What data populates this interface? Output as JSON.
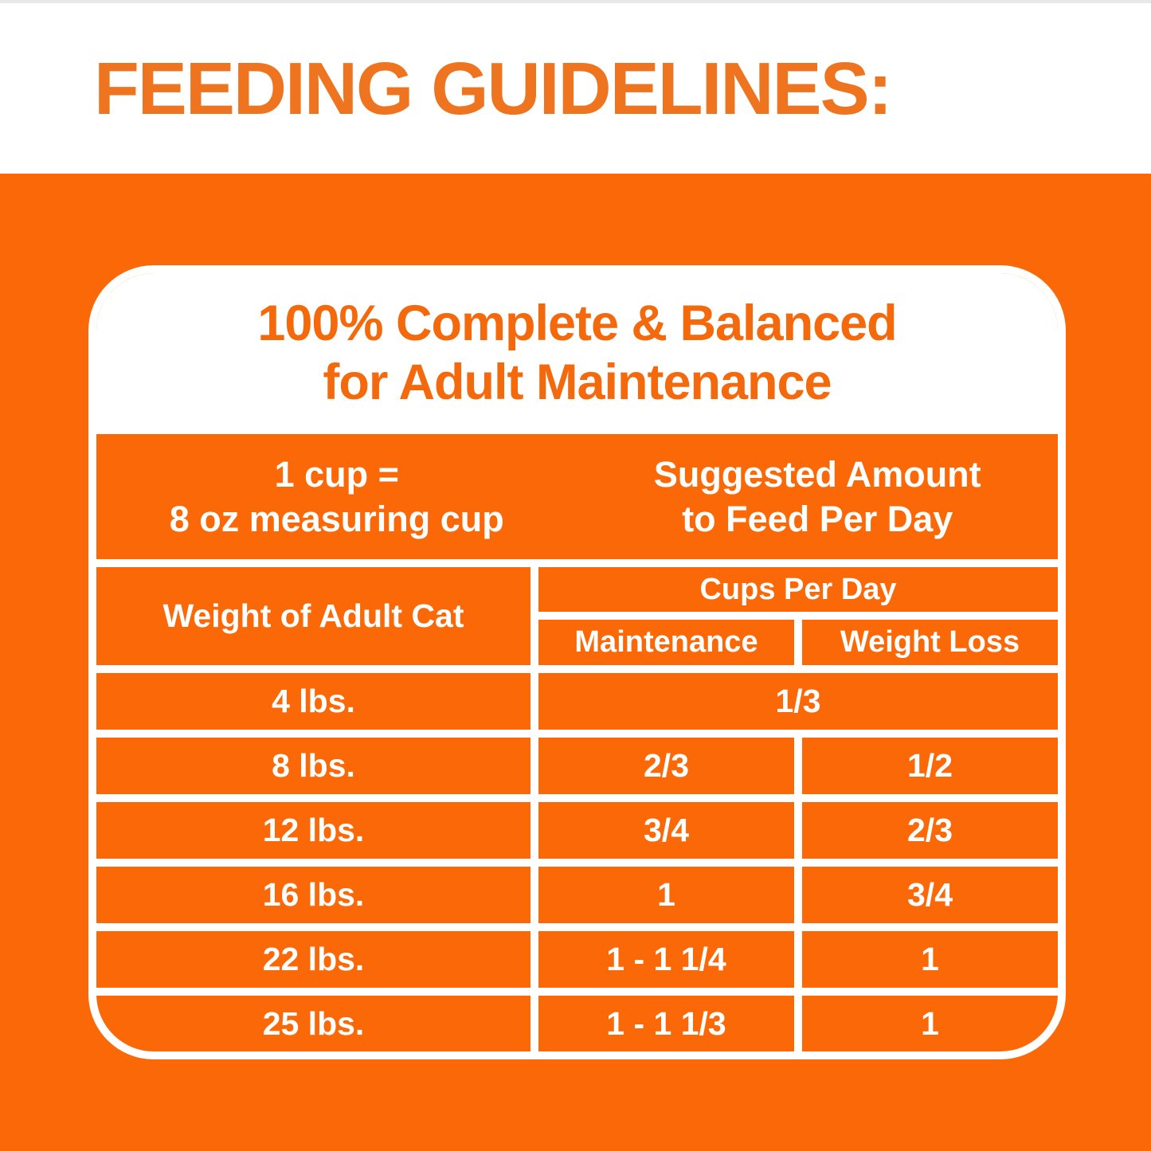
{
  "page": {
    "title": "FEEDING GUIDELINES:"
  },
  "colors": {
    "background_orange": "#fa6807",
    "title_orange": "#ef741f",
    "card_heading_orange": "#f4690b",
    "grid_white": "#ffffff"
  },
  "card": {
    "heading_line1": "100% Complete & Balanced",
    "heading_line2": "for Adult Maintenance",
    "intro": {
      "left_line1": "1 cup =",
      "left_line2": "8 oz measuring cup",
      "right_line1": "Suggested Amount",
      "right_line2": "to Feed Per Day"
    },
    "table": {
      "weight_header": "Weight of Adult Cat",
      "cups_header": "Cups Per Day",
      "col_maintenance": "Maintenance",
      "col_weight_loss": "Weight Loss",
      "rows": [
        {
          "weight": "4 lbs.",
          "maintenance": "1/3",
          "weight_loss": "1/3",
          "value_spans_both_columns": true
        },
        {
          "weight": "8 lbs.",
          "maintenance": "2/3",
          "weight_loss": "1/2"
        },
        {
          "weight": "12 lbs.",
          "maintenance": "3/4",
          "weight_loss": "2/3"
        },
        {
          "weight": "16 lbs.",
          "maintenance": "1",
          "weight_loss": "3/4"
        },
        {
          "weight": "22 lbs.",
          "maintenance": "1 - 1 1/4",
          "weight_loss": "1"
        },
        {
          "weight": "25 lbs.",
          "maintenance": "1 - 1 1/3",
          "weight_loss": "1"
        }
      ]
    }
  },
  "chart_data": {
    "type": "table",
    "title": "FEEDING GUIDELINES:",
    "subtitle": "100% Complete & Balanced for Adult Maintenance",
    "cup_definition": "1 cup = 8 oz measuring cup",
    "amount_header": "Suggested Amount to Feed Per Day",
    "unit_header": "Cups Per Day",
    "columns": [
      "Weight of Adult Cat",
      "Maintenance",
      "Weight Loss"
    ],
    "rows": [
      [
        "4 lbs.",
        "1/3",
        "1/3"
      ],
      [
        "8 lbs.",
        "2/3",
        "1/2"
      ],
      [
        "12 lbs.",
        "3/4",
        "2/3"
      ],
      [
        "16 lbs.",
        "1",
        "3/4"
      ],
      [
        "22 lbs.",
        "1 - 1 1/4",
        "1"
      ],
      [
        "25 lbs.",
        "1 - 1 1/3",
        "1"
      ]
    ],
    "notes": "Row for 4 lbs. shows a single value spanning both Maintenance and Weight Loss columns."
  }
}
